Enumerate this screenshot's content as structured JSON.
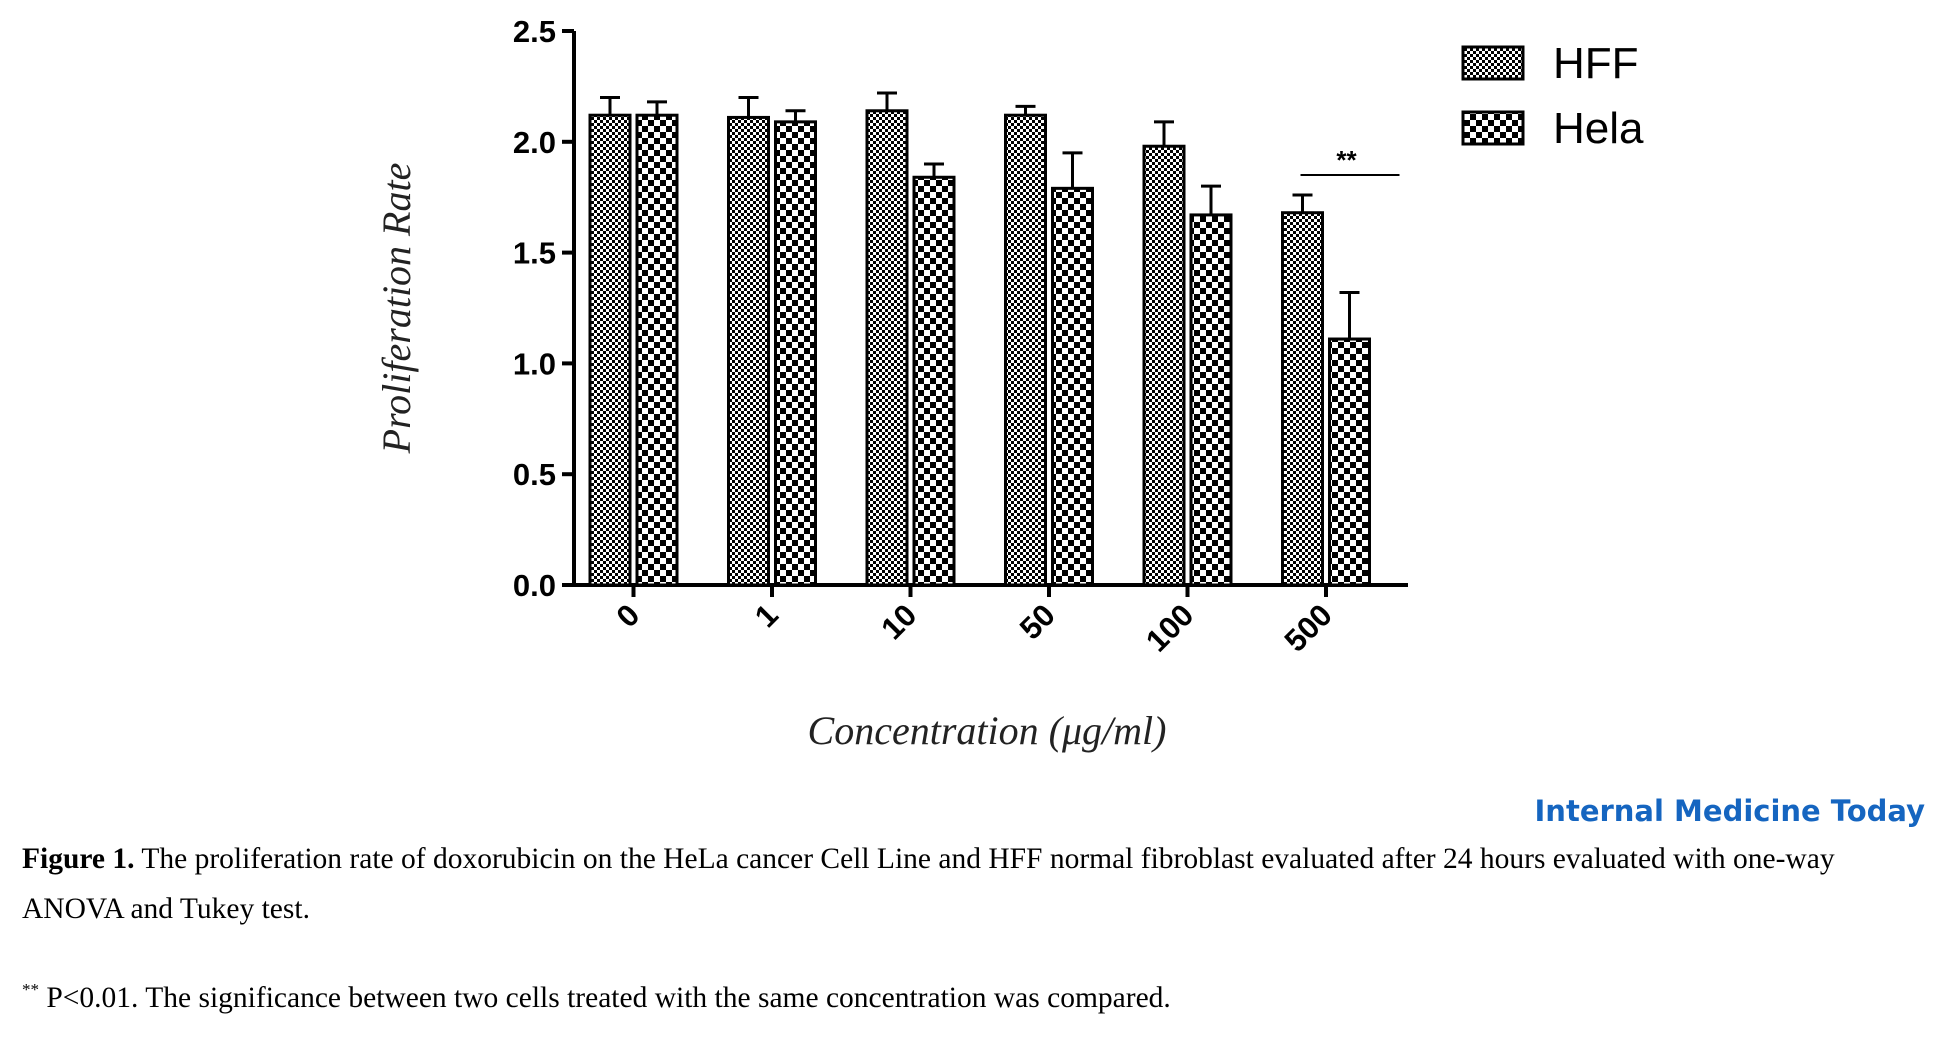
{
  "chart_data": {
    "type": "bar",
    "title": "",
    "xlabel": "Concentration (μg/ml)",
    "ylabel": "Proliferation Rate",
    "ylim": [
      0,
      2.5
    ],
    "yticks": [
      "0.0",
      "0.5",
      "1.0",
      "1.5",
      "2.0",
      "2.5"
    ],
    "categories": [
      "0",
      "1",
      "10",
      "50",
      "100",
      "500"
    ],
    "series": [
      {
        "name": "HFF",
        "values": [
          2.12,
          2.11,
          2.14,
          2.12,
          1.98,
          1.68
        ],
        "errors": [
          0.08,
          0.09,
          0.08,
          0.04,
          0.11,
          0.08
        ],
        "pattern": "fine-check"
      },
      {
        "name": "Hela",
        "values": [
          2.12,
          2.09,
          1.84,
          1.79,
          1.67,
          1.11
        ],
        "errors": [
          0.06,
          0.05,
          0.06,
          0.16,
          0.13,
          0.21
        ],
        "pattern": "coarse-check"
      }
    ],
    "annotations": [
      {
        "category": "500",
        "text": "**"
      }
    ],
    "legend_position": "top-right",
    "grid": false,
    "colors": {
      "bar_fill": "#000000",
      "background": "#ffffff"
    }
  },
  "source": {
    "journal": "Internal Medicine Today"
  },
  "caption": {
    "label": "Figure 1.",
    "text": " The proliferation rate of doxorubicin on the HeLa cancer Cell Line and HFF normal fibroblast evaluated after 24 hours evaluated with one-way ANOVA and Tukey test."
  },
  "footnote": {
    "marker": "**",
    "text": " P<0.01. The significance between two cells treated with the same concentration was compared."
  }
}
